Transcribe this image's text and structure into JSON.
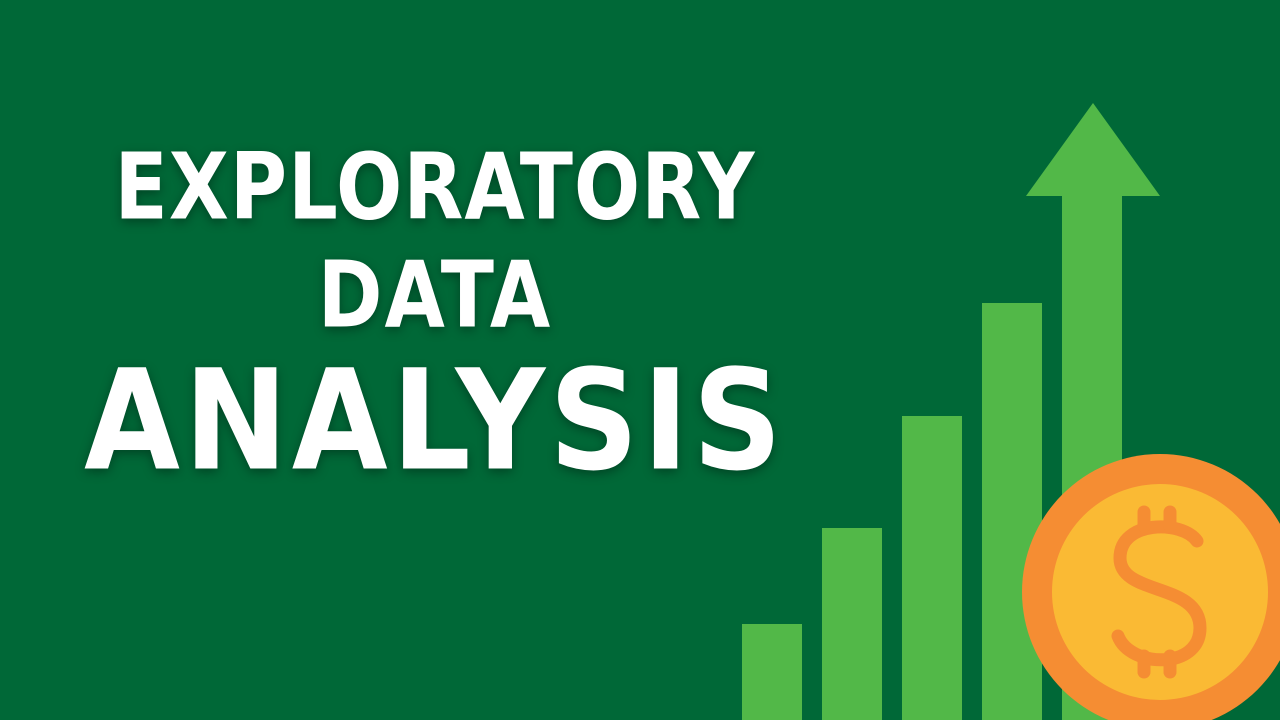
{
  "title": {
    "line1": "EXPLORATORY",
    "line2": "DATA",
    "line3": "ANALYSIS"
  },
  "graphic": {
    "bar_levels": [
      0.14,
      0.27,
      0.42,
      0.58
    ],
    "arrow": "up-arrow",
    "coin_symbol": "$",
    "icons": [
      "bar-chart-icon",
      "up-arrow-icon",
      "dollar-coin-icon"
    ]
  },
  "colors": {
    "background": "#006837",
    "bars": "#52B848",
    "coin_outer": "#F58D33",
    "coin_inner": "#FABA34",
    "coin_symbol": "#F58D33",
    "text": "#FFFFFF"
  }
}
